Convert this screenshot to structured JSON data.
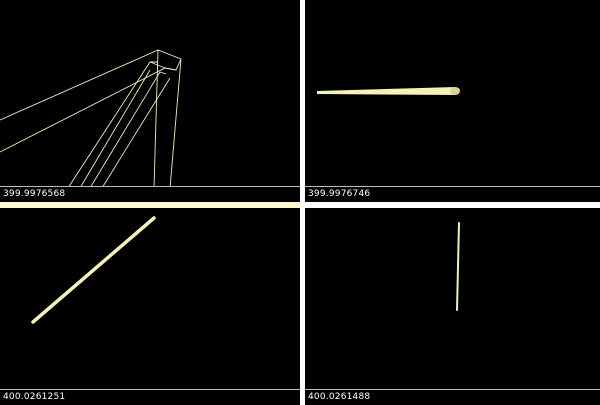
{
  "viewports": {
    "top_left": {
      "readout": "399.9976568"
    },
    "top_right": {
      "readout": "399.9976746"
    },
    "bottom_left": {
      "readout": "400.0261251"
    },
    "bottom_right": {
      "readout": "400.0261488"
    }
  },
  "colors": {
    "background": "#000000",
    "divider": "#ffffff",
    "active_border": "#fffbd0",
    "wire": "#f1efb2",
    "solid": "#f4f2b4",
    "status_text": "#ffffff"
  }
}
